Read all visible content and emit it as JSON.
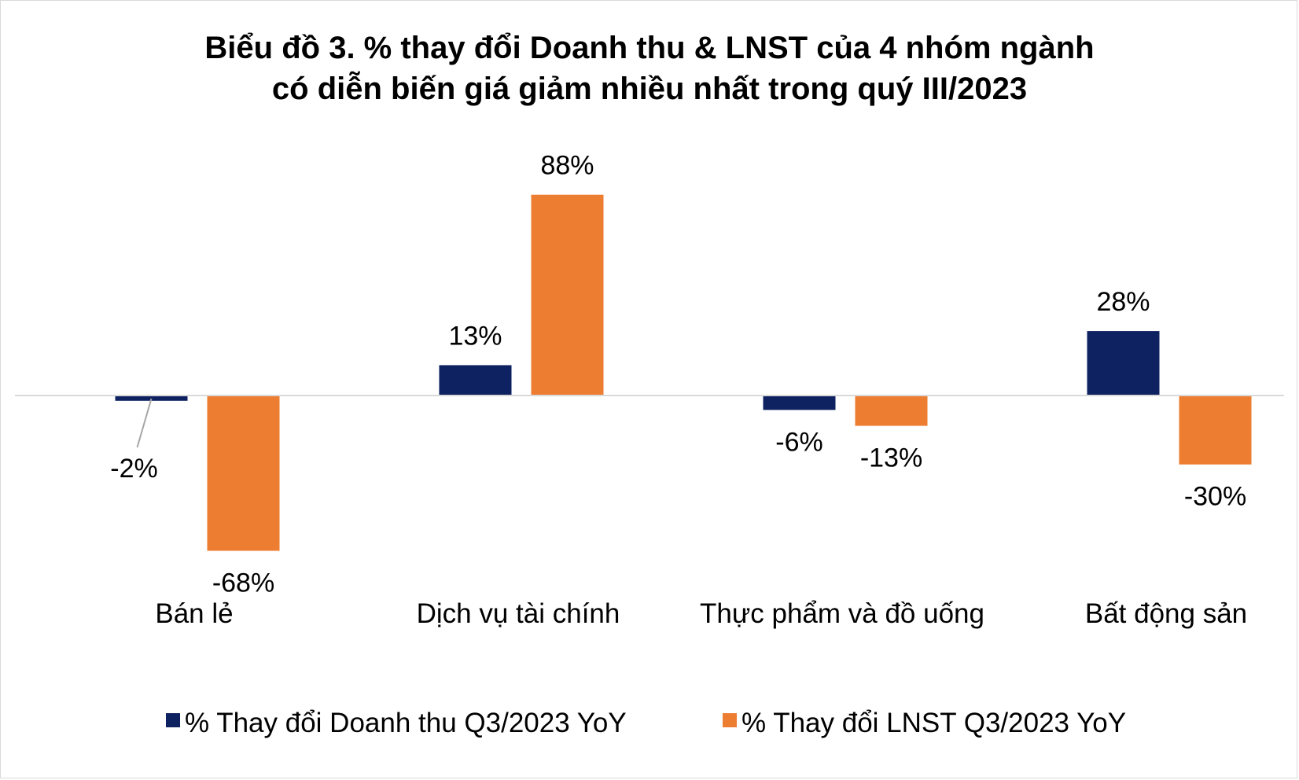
{
  "chart_data": {
    "type": "bar",
    "title": "Biểu đồ 3. % thay đổi Doanh thu & LNST của 4 nhóm ngành",
    "subtitle": "có diễn biến giá giảm nhiều nhất trong quý III/2023",
    "categories": [
      "Bán lẻ",
      "Dịch vụ tài chính",
      "Thực phẩm và đồ uống",
      "Bất động sản"
    ],
    "series": [
      {
        "name": "% Thay đổi Doanh thu Q3/2023 YoY",
        "values": [
          -2,
          13,
          -6,
          28
        ],
        "labels": [
          "-2%",
          "13%",
          "-6%",
          "28%"
        ],
        "color": "#0e2160"
      },
      {
        "name": "% Thay đổi LNST Q3/2023 YoY",
        "values": [
          -68,
          88,
          -13,
          -30
        ],
        "labels": [
          "-68%",
          "88%",
          "-13%",
          "-30%"
        ],
        "color": "#ed7d31"
      }
    ],
    "unit": "%",
    "legend_position": "bottom",
    "grid": false,
    "ylim": [
      -80,
      95
    ]
  }
}
